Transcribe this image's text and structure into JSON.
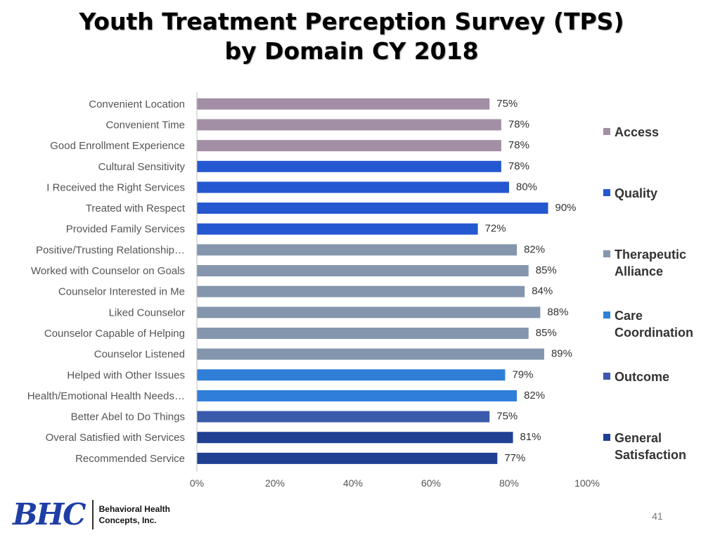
{
  "title": {
    "line1": "Youth Treatment Perception Survey (TPS)",
    "line2": "by Domain CY 2018"
  },
  "colors": {
    "Access": "#a38fa5",
    "Quality": "#2457d0",
    "Therapeutic Alliance": "#8396ad",
    "Care Coordination": "#2f7fd8",
    "Outcome": "#3a5aab",
    "General Satisfaction": "#1f3f93"
  },
  "chart_data": {
    "type": "bar",
    "orientation": "horizontal",
    "title": "Youth Treatment Perception Survey (TPS) by Domain CY 2018",
    "xlabel": "",
    "ylabel": "",
    "xlim": [
      0,
      100
    ],
    "x_ticks": [
      "0%",
      "20%",
      "40%",
      "60%",
      "80%",
      "100%"
    ],
    "value_suffix": "%",
    "grid": false,
    "legend_position": "right",
    "categories": [
      "Convenient Location",
      "Convenient Time",
      "Good Enrollment Experience",
      "Cultural Sensitivity",
      "I Received the Right Services",
      "Treated with Respect",
      "Provided Family Services",
      "Positive/Trusting Relationship…",
      "Worked with Counselor on Goals",
      "Counselor Interested in Me",
      "Liked Counselor",
      "Counselor Capable of Helping",
      "Counselor Listened",
      "Helped with Other Issues",
      "Health/Emotional Health Needs…",
      "Better Abel to Do Things",
      "Overal Satisfied with Services",
      "Recommended Service"
    ],
    "values": [
      75,
      78,
      78,
      78,
      80,
      90,
      72,
      82,
      85,
      84,
      88,
      85,
      89,
      79,
      82,
      75,
      81,
      77
    ],
    "value_labels": [
      "75%",
      "78%",
      "78%",
      "78%",
      "80%",
      "90%",
      "72%",
      "82%",
      "85%",
      "84%",
      "88%",
      "85%",
      "89%",
      "79%",
      "82%",
      "75%",
      "81%",
      "77%"
    ],
    "domains": [
      "Access",
      "Access",
      "Access",
      "Quality",
      "Quality",
      "Quality",
      "Quality",
      "Therapeutic Alliance",
      "Therapeutic Alliance",
      "Therapeutic Alliance",
      "Therapeutic Alliance",
      "Therapeutic Alliance",
      "Therapeutic Alliance",
      "Care Coordination",
      "Care Coordination",
      "Outcome",
      "General Satisfaction",
      "General Satisfaction"
    ],
    "legend": [
      {
        "name": "Access",
        "label_lines": [
          "Access"
        ]
      },
      {
        "name": "Quality",
        "label_lines": [
          "Quality"
        ]
      },
      {
        "name": "Therapeutic Alliance",
        "label_lines": [
          "Therapeutic",
          "Alliance"
        ]
      },
      {
        "name": "Care Coordination",
        "label_lines": [
          "Care",
          "Coordination"
        ]
      },
      {
        "name": "Outcome",
        "label_lines": [
          "Outcome"
        ]
      },
      {
        "name": "General Satisfaction",
        "label_lines": [
          "General",
          "Satisfaction"
        ]
      }
    ]
  },
  "footer": {
    "logo": "BHC",
    "company_line1": "Behavioral Health",
    "company_line2": "Concepts, Inc.",
    "page_number": "41"
  }
}
